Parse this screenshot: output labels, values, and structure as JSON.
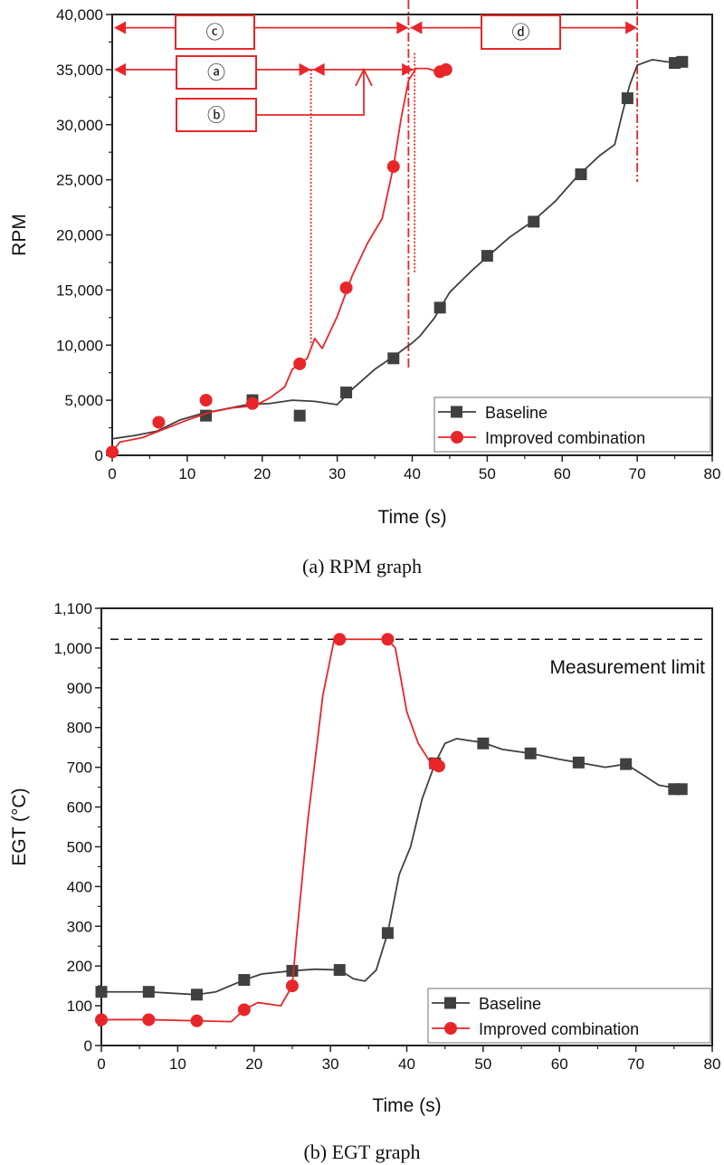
{
  "chart_data": [
    {
      "type": "line",
      "caption": "(a)  RPM  graph",
      "xlabel": "Time (s)",
      "ylabel": "RPM",
      "xlim": [
        0,
        80
      ],
      "ylim": [
        0,
        40000
      ],
      "xticks": [
        0,
        10,
        20,
        30,
        40,
        50,
        60,
        70,
        80
      ],
      "yticks": [
        0,
        5000,
        10000,
        15000,
        20000,
        25000,
        30000,
        35000,
        40000
      ],
      "ytick_labels": [
        "0",
        "5,000",
        "10,000",
        "15,000",
        "20,000",
        "25,000",
        "30,000",
        "35,000",
        "40,000"
      ],
      "grid": false,
      "legend_position": "bottom-right",
      "series": [
        {
          "name": "Baseline",
          "color": "#404040",
          "marker": "square",
          "line": [
            [
              0,
              1500
            ],
            [
              3,
              1800
            ],
            [
              6,
              2200
            ],
            [
              9,
              3200
            ],
            [
              12,
              3800
            ],
            [
              15,
              4200
            ],
            [
              18,
              4600
            ],
            [
              21,
              4700
            ],
            [
              24,
              5000
            ],
            [
              27,
              4900
            ],
            [
              30,
              4600
            ],
            [
              32,
              6000
            ],
            [
              35,
              7800
            ],
            [
              38,
              9200
            ],
            [
              40,
              10200
            ],
            [
              41,
              10800
            ],
            [
              43,
              12500
            ],
            [
              45,
              14800
            ],
            [
              48,
              16800
            ],
            [
              50,
              18000
            ],
            [
              53,
              19800
            ],
            [
              56,
              21200
            ],
            [
              59,
              23000
            ],
            [
              62,
              25300
            ],
            [
              65,
              27200
            ],
            [
              67,
              28200
            ],
            [
              68,
              31000
            ],
            [
              69,
              33600
            ],
            [
              70,
              35400
            ],
            [
              72,
              35900
            ],
            [
              74,
              35700
            ],
            [
              76,
              35700
            ]
          ],
          "markers": [
            [
              12.5,
              3600
            ],
            [
              18.7,
              5000
            ],
            [
              25,
              3600
            ],
            [
              31.2,
              5700
            ],
            [
              37.5,
              8800
            ],
            [
              43.7,
              13400
            ],
            [
              50,
              18100
            ],
            [
              56.2,
              21200
            ],
            [
              62.5,
              25500
            ],
            [
              68.7,
              32400
            ],
            [
              75,
              35600
            ],
            [
              76,
              35700
            ]
          ]
        },
        {
          "name": "Improved combination",
          "color": "#e8262a",
          "marker": "circle",
          "line": [
            [
              0,
              300
            ],
            [
              1,
              1200
            ],
            [
              4,
              1600
            ],
            [
              7,
              2400
            ],
            [
              10,
              3200
            ],
            [
              13,
              3900
            ],
            [
              16,
              4300
            ],
            [
              19,
              4500
            ],
            [
              21,
              5200
            ],
            [
              23,
              6200
            ],
            [
              24,
              7800
            ],
            [
              26,
              8800
            ],
            [
              27,
              10600
            ],
            [
              28,
              9700
            ],
            [
              30,
              12600
            ],
            [
              32,
              16300
            ],
            [
              34,
              19200
            ],
            [
              36,
              21500
            ],
            [
              37.5,
              26200
            ],
            [
              38.5,
              30500
            ],
            [
              39.5,
              34000
            ],
            [
              40.5,
              35100
            ],
            [
              42,
              35100
            ],
            [
              43,
              34900
            ],
            [
              44.5,
              35000
            ]
          ],
          "markers": [
            [
              0,
              300
            ],
            [
              6.2,
              3000
            ],
            [
              12.5,
              5000
            ],
            [
              18.7,
              4700
            ],
            [
              25,
              8300
            ],
            [
              31.2,
              15200
            ],
            [
              37.5,
              26200
            ],
            [
              43.7,
              34800
            ],
            [
              44.5,
              35000
            ]
          ]
        }
      ],
      "annotations": {
        "labels": [
          "ⓒ",
          "ⓓ",
          "ⓐ",
          "ⓑ"
        ],
        "c_range": [
          0,
          39.5
        ],
        "d_range": [
          39.5,
          70
        ],
        "a_range": [
          0,
          26.5
        ],
        "b_range": [
          26.5,
          40.2
        ],
        "color": "#e8262a"
      }
    },
    {
      "type": "line",
      "caption": "(b)  EGT  graph",
      "xlabel": "Time (s)",
      "ylabel": "EGT (°C)",
      "xlim": [
        0,
        80
      ],
      "ylim": [
        0,
        1100
      ],
      "xticks": [
        0,
        10,
        20,
        30,
        40,
        50,
        60,
        70,
        80
      ],
      "yticks": [
        0,
        100,
        200,
        300,
        400,
        500,
        600,
        700,
        800,
        900,
        1000,
        1100
      ],
      "ytick_labels": [
        "0",
        "100",
        "200",
        "300",
        "400",
        "500",
        "600",
        "700",
        "800",
        "900",
        "1,000",
        "1,100"
      ],
      "grid": false,
      "legend_position": "bottom-right",
      "reference_line": {
        "label": "Measurement limit",
        "y": 1022,
        "style": "dashed"
      },
      "series": [
        {
          "name": "Baseline",
          "color": "#404040",
          "marker": "square",
          "line": [
            [
              0,
              135
            ],
            [
              6.2,
              135
            ],
            [
              12.5,
              128
            ],
            [
              15,
              135
            ],
            [
              18.7,
              165
            ],
            [
              21,
              180
            ],
            [
              25,
              188
            ],
            [
              28,
              192
            ],
            [
              31.2,
              190
            ],
            [
              33,
              168
            ],
            [
              34.5,
              162
            ],
            [
              36,
              190
            ],
            [
              37.5,
              283
            ],
            [
              39,
              430
            ],
            [
              40.5,
              500
            ],
            [
              42,
              620
            ],
            [
              43.7,
              710
            ],
            [
              45,
              760
            ],
            [
              46.5,
              772
            ],
            [
              50,
              762
            ],
            [
              52.5,
              745
            ],
            [
              56.2,
              735
            ],
            [
              60,
              720
            ],
            [
              62.5,
              712
            ],
            [
              66,
              700
            ],
            [
              68.7,
              708
            ],
            [
              71,
              680
            ],
            [
              73,
              655
            ],
            [
              76,
              645
            ]
          ],
          "markers": [
            [
              0,
              135
            ],
            [
              6.2,
              135
            ],
            [
              12.5,
              128
            ],
            [
              18.7,
              165
            ],
            [
              25,
              188
            ],
            [
              31.2,
              190
            ],
            [
              37.5,
              283
            ],
            [
              43.7,
              710
            ],
            [
              50,
              760
            ],
            [
              56.2,
              735
            ],
            [
              62.5,
              712
            ],
            [
              68.7,
              708
            ],
            [
              75,
              645
            ],
            [
              76,
              645
            ]
          ]
        },
        {
          "name": "Improved combination",
          "color": "#e8262a",
          "marker": "circle",
          "line": [
            [
              0,
              65
            ],
            [
              6.2,
              65
            ],
            [
              12.5,
              62
            ],
            [
              17,
              60
            ],
            [
              18.7,
              90
            ],
            [
              20.5,
              108
            ],
            [
              23.5,
              100
            ],
            [
              25,
              150
            ],
            [
              25.5,
              260
            ],
            [
              27,
              560
            ],
            [
              29,
              880
            ],
            [
              30.5,
              1022
            ],
            [
              37.5,
              1022
            ],
            [
              38.5,
              1000
            ],
            [
              40,
              840
            ],
            [
              41.5,
              760
            ],
            [
              43,
              715
            ],
            [
              44.2,
              703
            ]
          ],
          "markers": [
            [
              0,
              65
            ],
            [
              6.2,
              65
            ],
            [
              12.5,
              62
            ],
            [
              18.7,
              90
            ],
            [
              25,
              150
            ],
            [
              31.2,
              1022
            ],
            [
              37.5,
              1022
            ],
            [
              43.7,
              708
            ],
            [
              44.2,
              703
            ]
          ]
        }
      ]
    }
  ]
}
